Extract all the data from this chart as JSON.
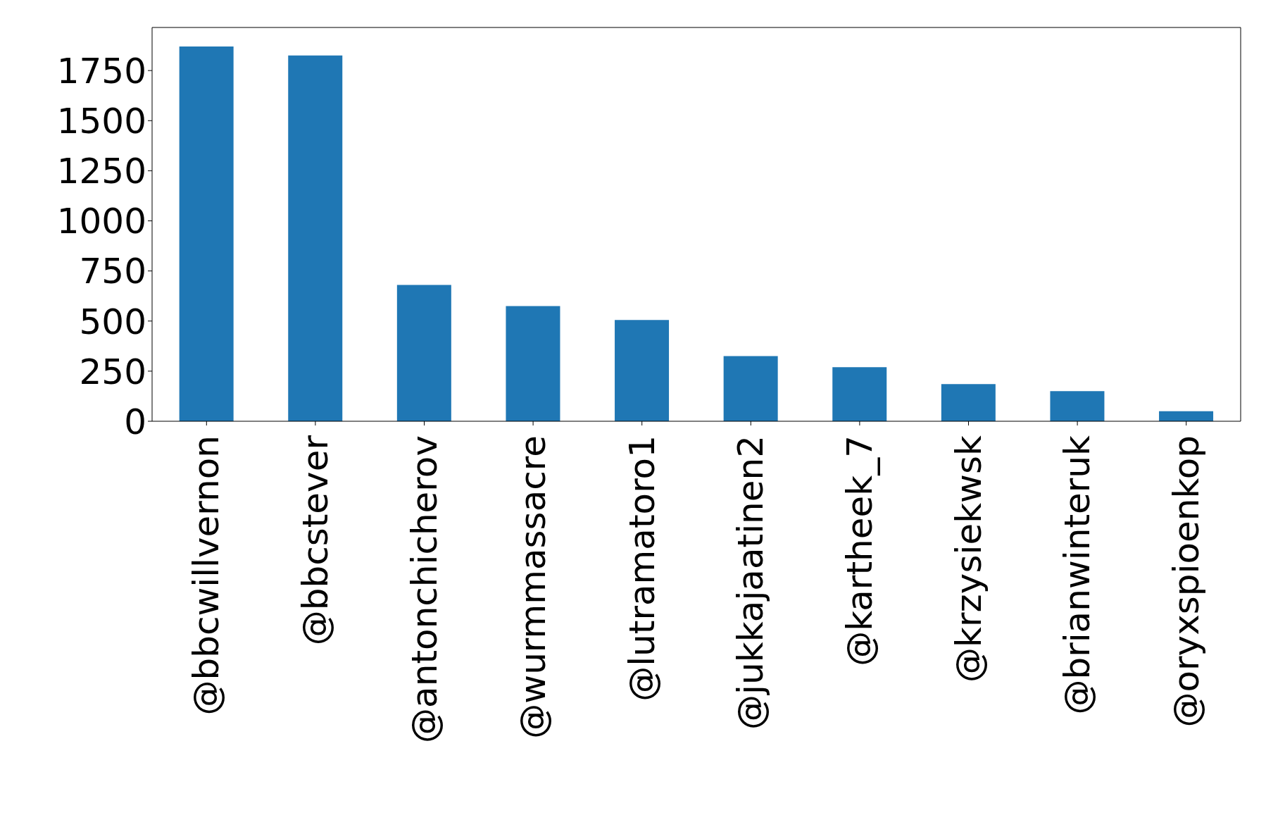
{
  "chart_data": {
    "type": "bar",
    "categories": [
      "@bbcwillvernon",
      "@bbcstever",
      "@antonchicherov",
      "@wurmmassacre",
      "@lutramatoro1",
      "@jukkajaatinen2",
      "@kartheek_7",
      "@krzysiekwsk",
      "@brianwinteruk",
      "@oryxspioenkop"
    ],
    "values": [
      1870,
      1825,
      680,
      575,
      505,
      325,
      270,
      185,
      150,
      50
    ],
    "color": "#1f77b4",
    "ylim": [
      0,
      1965
    ],
    "yticks": [
      0,
      250,
      500,
      750,
      1000,
      1250,
      1500,
      1750
    ],
    "grid": false,
    "legend": false
  }
}
